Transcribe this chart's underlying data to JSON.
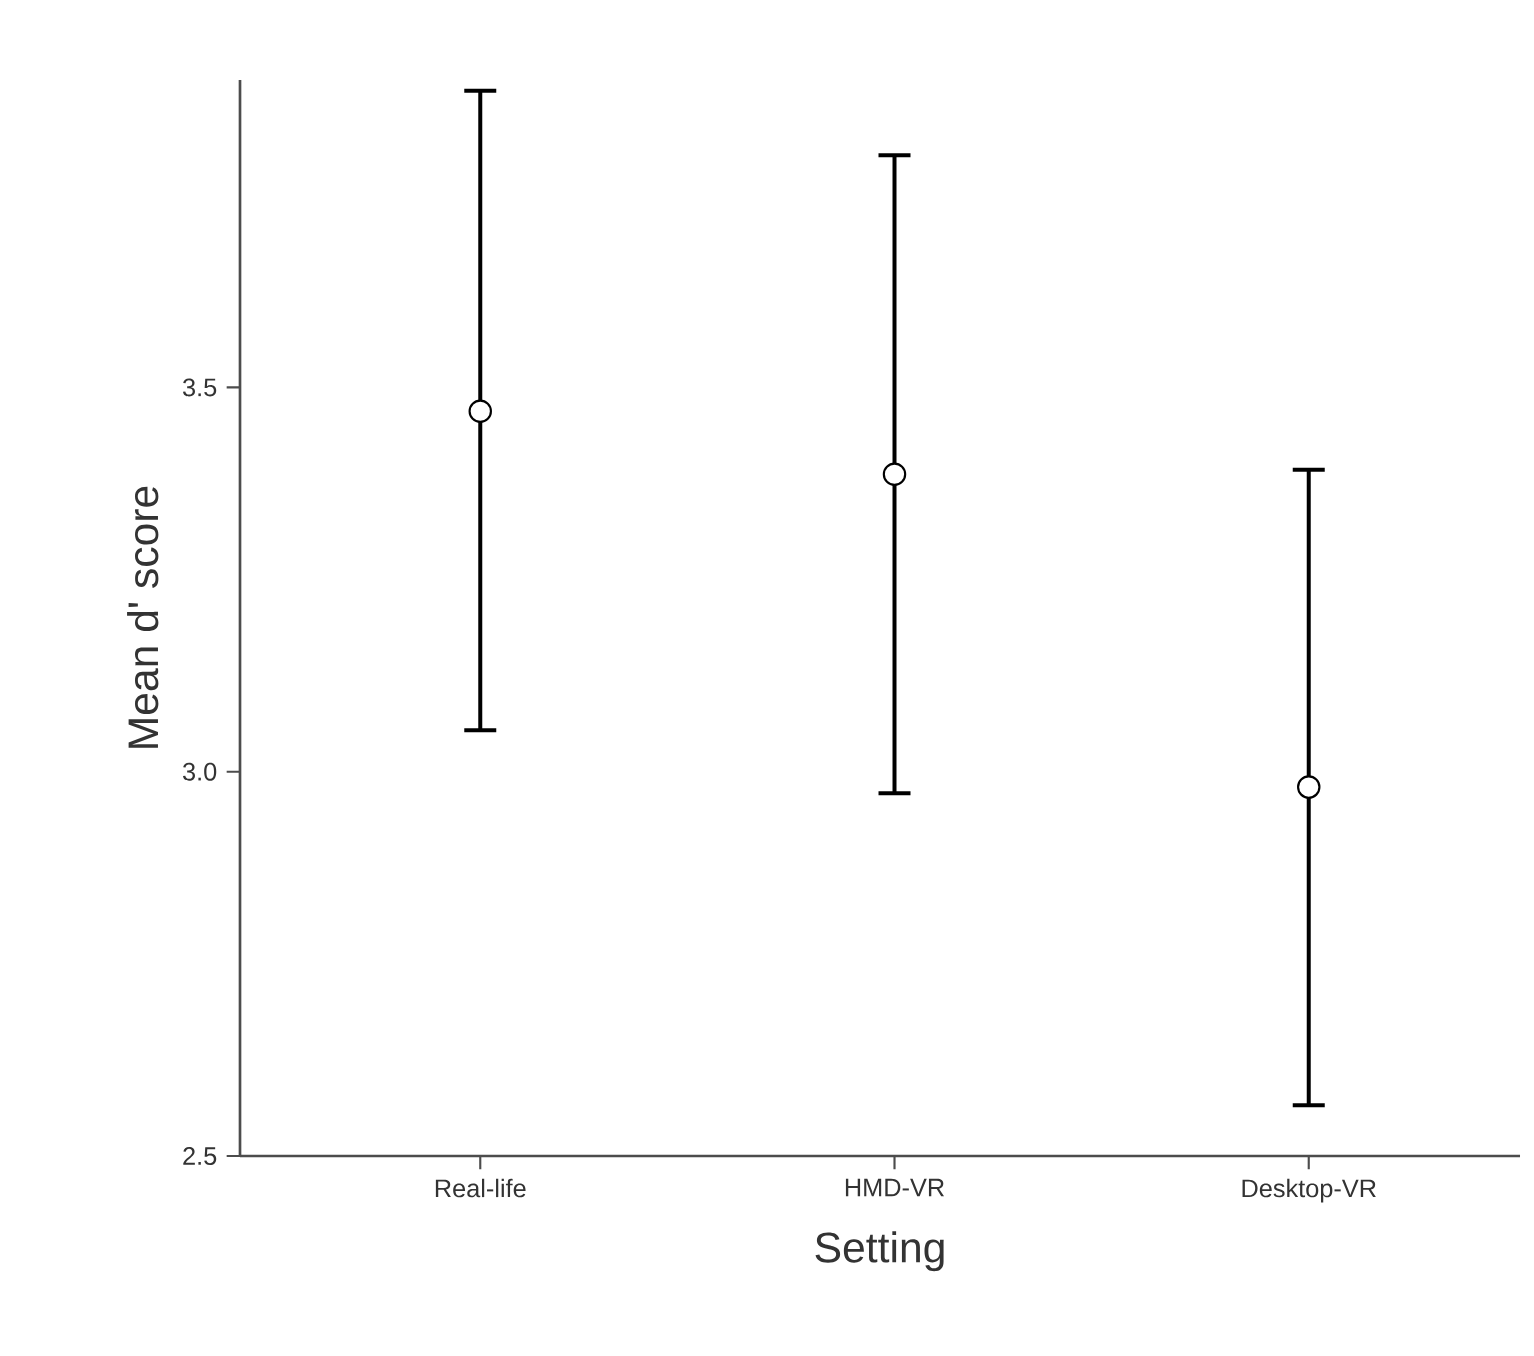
{
  "chart_data": {
    "type": "scatter",
    "xlabel": "Setting",
    "ylabel": "Mean d' score",
    "categories": [
      "Real-life",
      "HMD-VR",
      "Desktop-VR"
    ],
    "values": [
      3.469,
      3.387,
      2.98
    ],
    "errors": [
      [
        3.054,
        3.886
      ],
      [
        2.972,
        3.802
      ],
      [
        2.566,
        3.393
      ]
    ],
    "color": "#000000",
    "marker": "circle",
    "ylim": [
      2.5,
      3.9
    ],
    "yticks": [
      2.5,
      {
        "value": 3,
        "label": "3.0"
      },
      3.5
    ]
  }
}
